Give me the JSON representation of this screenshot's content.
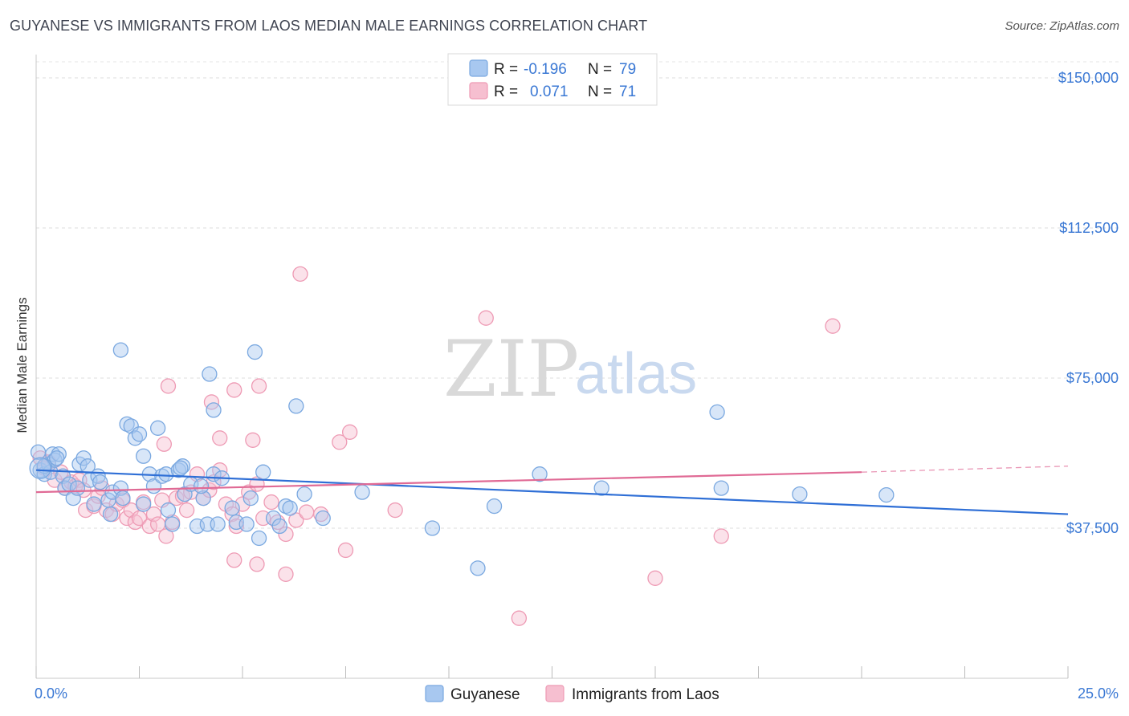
{
  "header": {
    "title": "GUYANESE VS IMMIGRANTS FROM LAOS MEDIAN MALE EARNINGS CORRELATION CHART",
    "source": "Source: ZipAtlas.com"
  },
  "watermark": {
    "zip": "ZIP",
    "atlas": "atlas"
  },
  "stats_legend": [
    {
      "r_label": "R =",
      "r_value": "-0.196",
      "n_label": "N =",
      "n_value": "79",
      "color": "#a8c8f0",
      "stroke": "#7aa8e0"
    },
    {
      "r_label": "R =",
      "r_value": "0.071",
      "n_label": "N =",
      "n_value": "71",
      "color": "#f6bfd0",
      "stroke": "#ee9ab4"
    }
  ],
  "bottom_legend": [
    {
      "label": "Guyanese",
      "color": "#a8c8f0",
      "stroke": "#7aa8e0"
    },
    {
      "label": "Immigrants from Laos",
      "color": "#f6bfd0",
      "stroke": "#ee9ab4"
    }
  ],
  "chart_data": {
    "type": "scatter",
    "ylabel": "Median Male Earnings",
    "xlim": [
      0,
      25
    ],
    "ylim": [
      0,
      155000
    ],
    "x_tick_labels": [
      "0.0%",
      "25.0%"
    ],
    "y_ticks": [
      37500,
      75000,
      112500,
      150000
    ],
    "y_tick_labels": [
      "$37,500",
      "$75,000",
      "$112,500",
      "$150,000"
    ],
    "grid": true,
    "series": [
      {
        "name": "Guyanese",
        "color": "#7aa8e0",
        "fill": "#a8c8f0",
        "line_color": "#2f6fd6",
        "trend": {
          "x": [
            0,
            25
          ],
          "y": [
            52000,
            41000
          ]
        },
        "points": [
          [
            0.05,
            56500
          ],
          [
            0.1,
            52000
          ],
          [
            0.2,
            51000
          ],
          [
            0.3,
            53500
          ],
          [
            0.35,
            51500
          ],
          [
            0.4,
            56000
          ],
          [
            0.45,
            54500
          ],
          [
            0.55,
            56000
          ],
          [
            0.65,
            50500
          ],
          [
            0.7,
            47500
          ],
          [
            0.8,
            48500
          ],
          [
            0.9,
            45000
          ],
          [
            1.0,
            47500
          ],
          [
            1.05,
            53500
          ],
          [
            1.15,
            55000
          ],
          [
            1.25,
            53000
          ],
          [
            1.3,
            49500
          ],
          [
            1.4,
            43500
          ],
          [
            1.5,
            50500
          ],
          [
            1.55,
            49000
          ],
          [
            1.75,
            44500
          ],
          [
            1.8,
            41000
          ],
          [
            1.85,
            46500
          ],
          [
            2.05,
            47500
          ],
          [
            2.2,
            63500
          ],
          [
            2.3,
            63000
          ],
          [
            2.4,
            60000
          ],
          [
            2.5,
            61000
          ],
          [
            2.6,
            55500
          ],
          [
            2.6,
            43500
          ],
          [
            2.75,
            51000
          ],
          [
            2.85,
            48000
          ],
          [
            2.95,
            62500
          ],
          [
            3.05,
            50500
          ],
          [
            3.15,
            51000
          ],
          [
            3.2,
            42000
          ],
          [
            3.3,
            38500
          ],
          [
            3.45,
            52000
          ],
          [
            3.55,
            53000
          ],
          [
            3.6,
            46000
          ],
          [
            3.75,
            48500
          ],
          [
            3.9,
            38000
          ],
          [
            4.05,
            45000
          ],
          [
            4.15,
            38500
          ],
          [
            4.3,
            51000
          ],
          [
            4.4,
            38500
          ],
          [
            4.5,
            50000
          ],
          [
            4.75,
            42500
          ],
          [
            4.85,
            39000
          ],
          [
            5.1,
            38500
          ],
          [
            5.2,
            45000
          ],
          [
            5.4,
            35000
          ],
          [
            5.5,
            51500
          ],
          [
            5.75,
            40000
          ],
          [
            5.9,
            38000
          ],
          [
            6.05,
            43000
          ],
          [
            6.15,
            42500
          ],
          [
            6.5,
            46000
          ],
          [
            6.95,
            40000
          ],
          [
            7.9,
            46500
          ],
          [
            2.05,
            82000
          ],
          [
            4.2,
            76000
          ],
          [
            5.3,
            81500
          ],
          [
            6.3,
            68000
          ],
          [
            4.3,
            67000
          ],
          [
            9.6,
            37500
          ],
          [
            10.7,
            27500
          ],
          [
            11.1,
            43000
          ],
          [
            12.2,
            51000
          ],
          [
            13.7,
            47500
          ],
          [
            16.5,
            66500
          ],
          [
            16.6,
            47500
          ],
          [
            18.5,
            46000
          ],
          [
            20.6,
            45800
          ],
          [
            2.1,
            45000
          ],
          [
            3.5,
            52500
          ],
          [
            4.0,
            48000
          ],
          [
            0.2,
            53000
          ],
          [
            0.5,
            55000
          ]
        ]
      },
      {
        "name": "Immigrants from Laos",
        "color": "#ee9ab4",
        "fill": "#f6bfd0",
        "line_color": "#e06a95",
        "trend": {
          "x": [
            0,
            20
          ],
          "y": [
            46500,
            51500
          ]
        },
        "trend_dashed": {
          "x": [
            20,
            25
          ],
          "y": [
            51500,
            53000
          ]
        },
        "points": [
          [
            0.1,
            55000
          ],
          [
            0.2,
            52500
          ],
          [
            0.3,
            54000
          ],
          [
            0.45,
            49500
          ],
          [
            0.6,
            51500
          ],
          [
            0.7,
            47500
          ],
          [
            0.85,
            49000
          ],
          [
            0.95,
            48000
          ],
          [
            1.05,
            49500
          ],
          [
            1.15,
            47000
          ],
          [
            1.2,
            42000
          ],
          [
            1.4,
            43000
          ],
          [
            1.5,
            45500
          ],
          [
            1.6,
            47500
          ],
          [
            1.7,
            42000
          ],
          [
            1.85,
            41000
          ],
          [
            1.95,
            43500
          ],
          [
            2.1,
            44500
          ],
          [
            2.2,
            40000
          ],
          [
            2.3,
            42000
          ],
          [
            2.4,
            39000
          ],
          [
            2.5,
            40000
          ],
          [
            2.6,
            44000
          ],
          [
            2.75,
            38000
          ],
          [
            2.85,
            41000
          ],
          [
            2.95,
            38500
          ],
          [
            3.05,
            44500
          ],
          [
            3.15,
            35500
          ],
          [
            3.3,
            39000
          ],
          [
            3.4,
            45000
          ],
          [
            3.55,
            45500
          ],
          [
            3.65,
            42000
          ],
          [
            3.75,
            46500
          ],
          [
            3.9,
            51000
          ],
          [
            4.05,
            45000
          ],
          [
            4.2,
            47000
          ],
          [
            4.3,
            49000
          ],
          [
            4.45,
            52000
          ],
          [
            4.6,
            43500
          ],
          [
            4.75,
            41000
          ],
          [
            4.85,
            38000
          ],
          [
            5.0,
            43500
          ],
          [
            5.15,
            46500
          ],
          [
            5.35,
            48500
          ],
          [
            5.5,
            40000
          ],
          [
            5.7,
            44000
          ],
          [
            5.85,
            39000
          ],
          [
            6.05,
            36000
          ],
          [
            6.3,
            39500
          ],
          [
            6.55,
            41500
          ],
          [
            6.9,
            41000
          ],
          [
            7.35,
            59000
          ],
          [
            7.6,
            61500
          ],
          [
            7.5,
            32000
          ],
          [
            8.7,
            42000
          ],
          [
            3.2,
            73000
          ],
          [
            4.8,
            72000
          ],
          [
            5.4,
            73000
          ],
          [
            4.25,
            69000
          ],
          [
            3.1,
            58500
          ],
          [
            4.45,
            60000
          ],
          [
            5.25,
            59500
          ],
          [
            6.4,
            101000
          ],
          [
            10.9,
            90000
          ],
          [
            19.3,
            88000
          ],
          [
            16.6,
            35500
          ],
          [
            15.0,
            25000
          ],
          [
            11.7,
            15000
          ],
          [
            4.8,
            29500
          ],
          [
            5.35,
            28500
          ],
          [
            6.05,
            26000
          ]
        ]
      }
    ]
  }
}
